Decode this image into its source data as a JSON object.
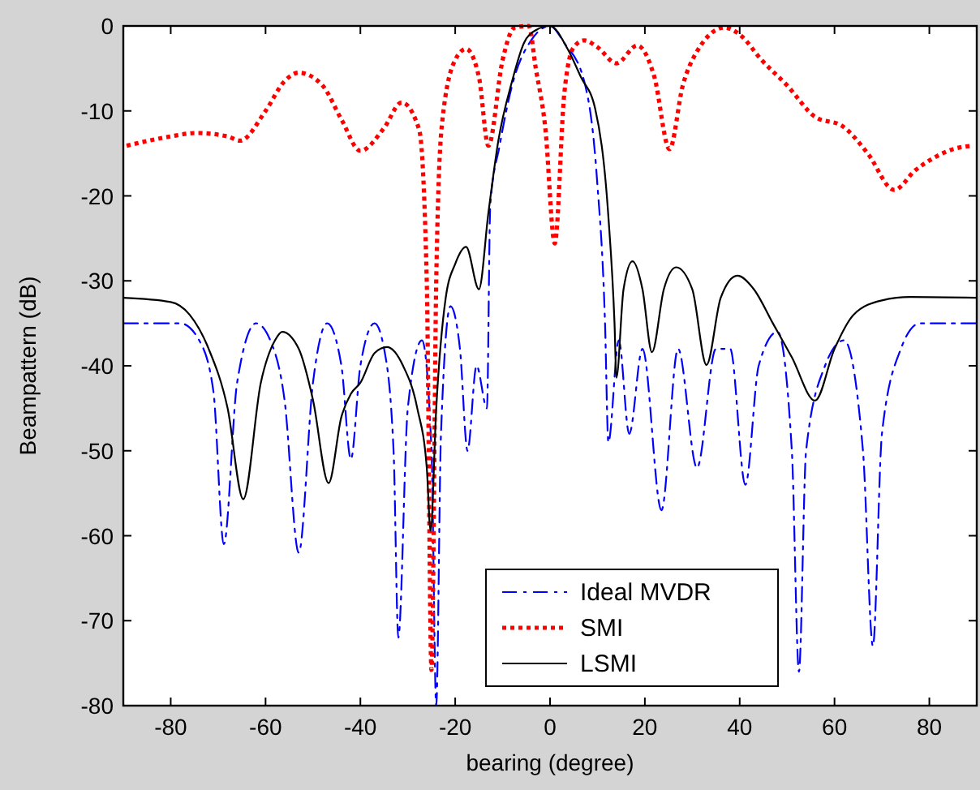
{
  "chart_data": {
    "type": "line",
    "xlabel": "bearing (degree)",
    "ylabel": "Beampattern (dB)",
    "xlim": [
      -90,
      90
    ],
    "ylim": [
      -80,
      0
    ],
    "xticks": [
      -80,
      -60,
      -40,
      -20,
      0,
      20,
      40,
      60,
      80
    ],
    "yticks": [
      -80,
      -70,
      -60,
      -50,
      -40,
      -30,
      -20,
      -10,
      0
    ],
    "grid": false,
    "legend": "bottom",
    "series": [
      {
        "name": "Ideal MVDR",
        "color": "#0000ff",
        "line_style": "dashdot",
        "x": [
          -90,
          -78,
          -74,
          -71,
          -68.8,
          -66,
          -62,
          -59,
          -56,
          -53,
          -50,
          -47,
          -44,
          -42,
          -40,
          -37,
          -35,
          -33,
          -32,
          -30,
          -27,
          -25,
          -24,
          -23,
          -21,
          -19,
          -17.4,
          -15.5,
          -13.3,
          -12.6,
          -10.6,
          -8,
          -4,
          0,
          3,
          7.2,
          9.9,
          11.6,
          12.3,
          14.5,
          16.7,
          19.5,
          23.5,
          27,
          31,
          35,
          38,
          41.2,
          44,
          48,
          51,
          52.5,
          54,
          58,
          62,
          66,
          68.1,
          70,
          74,
          78,
          90
        ],
        "values": [
          -35,
          -35,
          -37,
          -43,
          -61,
          -42,
          -35,
          -37,
          -44,
          -62,
          -42,
          -35,
          -40,
          -51,
          -40,
          -35,
          -38,
          -50,
          -72,
          -45,
          -37,
          -50,
          -80,
          -48,
          -33,
          -38,
          -50,
          -40,
          -45,
          -21,
          -14,
          -7,
          -1.7,
          0,
          -2,
          -6.5,
          -18,
          -35,
          -49,
          -37,
          -48,
          -38,
          -57,
          -38,
          -52,
          -38,
          -38,
          -54,
          -40,
          -36,
          -50,
          -76,
          -50,
          -40,
          -37,
          -50,
          -73,
          -48,
          -38,
          -35,
          -35
        ]
      },
      {
        "name": "SMI",
        "color": "#ff0000",
        "line_style": "dotted",
        "x": [
          -89.3,
          -80,
          -74.6,
          -68,
          -65.4,
          -60,
          -56,
          -53,
          -48,
          -44,
          -40,
          -35,
          -31.3,
          -27.6,
          -26,
          -25,
          -24,
          -22.8,
          -20,
          -17.7,
          -15,
          -13,
          -10,
          -7.5,
          -4.5,
          -3,
          -1,
          1,
          3,
          5,
          7.2,
          10,
          14,
          18.4,
          22,
          25.2,
          28,
          31,
          36.8,
          40,
          44.6,
          50,
          55.9,
          61.7,
          67,
          72.6,
          77,
          81,
          85,
          89
        ],
        "values": [
          -14.1,
          -13,
          -12.6,
          -13,
          -13.5,
          -10,
          -6.5,
          -5.5,
          -7,
          -11,
          -14.7,
          -12,
          -9,
          -12.2,
          -30,
          -75.8,
          -30,
          -11.6,
          -4,
          -2.7,
          -6,
          -14.1,
          -4,
          -0.2,
          0,
          -5,
          -12,
          -25.6,
          -8,
          -2.5,
          -1.7,
          -2.5,
          -4.4,
          -2.3,
          -6,
          -14.5,
          -7,
          -3,
          -0.2,
          -1,
          -4,
          -7,
          -10.7,
          -11.8,
          -15,
          -19.3,
          -17,
          -15.5,
          -14.5,
          -14.1
        ]
      },
      {
        "name": "LSMI",
        "color": "#000000",
        "line_style": "solid",
        "x": [
          -90,
          -80,
          -76,
          -72,
          -68,
          -64.7,
          -61,
          -58,
          -56.5,
          -53,
          -50,
          -46.7,
          -44,
          -42,
          -40,
          -37,
          -34.4,
          -31,
          -28,
          -26,
          -25.2,
          -24,
          -22,
          -20,
          -17.7,
          -15,
          -13,
          -10.9,
          -8,
          -5.5,
          -3,
          0,
          3.7,
          6.5,
          9.5,
          12.3,
          13.6,
          14,
          15.5,
          17.4,
          19.5,
          21.5,
          24,
          26.6,
          30,
          33,
          36,
          39.5,
          43,
          47,
          51,
          55.9,
          60,
          64,
          70,
          76,
          90
        ],
        "values": [
          -32,
          -32.5,
          -34,
          -38,
          -45,
          -55.7,
          -42,
          -37,
          -36,
          -38,
          -44,
          -53.8,
          -46,
          -43.3,
          -42,
          -38.5,
          -37.8,
          -40,
          -45,
          -52,
          -59.4,
          -45,
          -32,
          -28,
          -26,
          -31,
          -22,
          -13.5,
          -6.5,
          -2,
          -0.5,
          0,
          -2.7,
          -6,
          -9.7,
          -22.4,
          -35,
          -41.4,
          -31,
          -27.7,
          -31,
          -38.4,
          -31,
          -28.4,
          -31,
          -39.9,
          -32,
          -29.4,
          -31,
          -35,
          -39,
          -44.1,
          -38,
          -34,
          -32.3,
          -31.9,
          -32
        ]
      }
    ]
  }
}
